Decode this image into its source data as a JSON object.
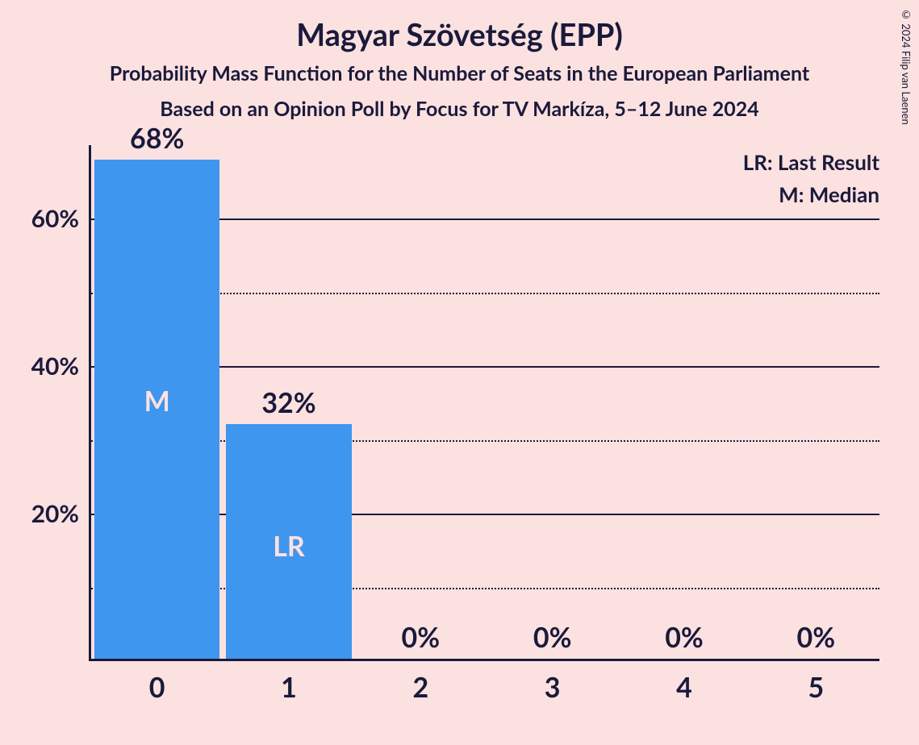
{
  "background_color": "#fce1e1",
  "text_color": "#1a1a3a",
  "copyright": "© 2024 Filip van Laenen",
  "title": {
    "text": "Magyar Szövetség (EPP)",
    "fontsize": 38
  },
  "subtitle1": {
    "text": "Probability Mass Function for the Number of Seats in the European Parliament",
    "fontsize": 25
  },
  "subtitle2": {
    "text": "Based on an Opinion Poll by Focus for TV Markíza, 5–12 June 2024",
    "fontsize": 25
  },
  "legend": {
    "lr": "LR: Last Result",
    "m": "M: Median",
    "fontsize": 26
  },
  "chart": {
    "type": "bar",
    "y_max": 70,
    "y_major_ticks": [
      20,
      40,
      60
    ],
    "y_minor_ticks": [
      10,
      30,
      50
    ],
    "y_tick_label_fontsize": 30,
    "x_tick_label_fontsize": 34,
    "bar_value_fontsize": 34,
    "bar_inner_label_fontsize": 34,
    "bar_color": "#3E96EE",
    "bar_inner_label_color": "#fce1e1",
    "bar_width_ratio": 0.95,
    "categories": [
      "0",
      "1",
      "2",
      "3",
      "4",
      "5"
    ],
    "bars": [
      {
        "value": 68,
        "label": "68%",
        "inner": "M"
      },
      {
        "value": 32,
        "label": "32%",
        "inner": "LR"
      },
      {
        "value": 0,
        "label": "0%",
        "inner": ""
      },
      {
        "value": 0,
        "label": "0%",
        "inner": ""
      },
      {
        "value": 0,
        "label": "0%",
        "inner": ""
      },
      {
        "value": 0,
        "label": "0%",
        "inner": ""
      }
    ]
  }
}
